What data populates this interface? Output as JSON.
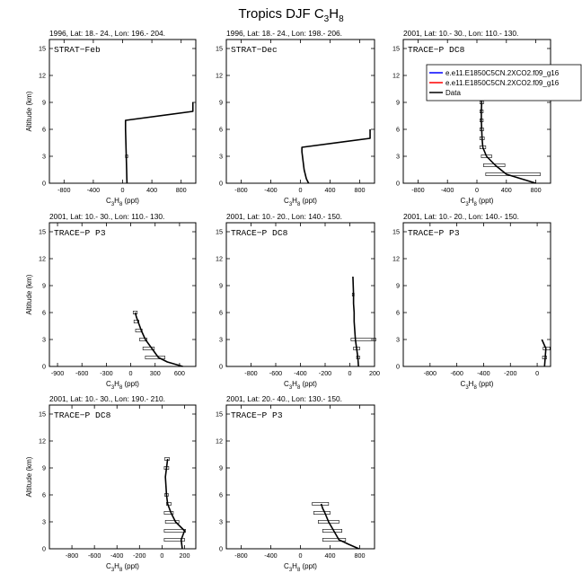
{
  "page": {
    "title_main": "Tropics DJF C",
    "title_sub1": "3",
    "title_mid": "H",
    "title_sub2": "8"
  },
  "chart_data": [
    {
      "type": "line",
      "subtitle": "1996, Lat: 18.- 24., Lon: 196.- 204.",
      "campaign": "STRAT−Feb",
      "xlabel": "C3H8 (ppt)",
      "ylabel": "Altitude (km)",
      "xlim": [
        -1000,
        1000
      ],
      "ylim": [
        0,
        16
      ],
      "xticks": [
        -800,
        -400,
        0,
        400,
        800
      ],
      "yticks": [
        0,
        3,
        6,
        9,
        12,
        15
      ],
      "series": [
        {
          "color": "#000000",
          "x": [
            60,
            58,
            55,
            50,
            45,
            40,
            40,
            960,
            960
          ],
          "y": [
            0,
            0.5,
            1.5,
            3,
            4.5,
            6,
            7,
            8,
            9
          ]
        }
      ],
      "errorbars": [
        {
          "y": 3,
          "xmin": 40,
          "xmax": 70
        }
      ]
    },
    {
      "type": "line",
      "subtitle": "1996, Lat: 18.- 24., Lon: 198.- 206.",
      "campaign": "STRAT−Dec",
      "xlabel": "C3H8 (ppt)",
      "ylabel": "",
      "xlim": [
        -1000,
        1000
      ],
      "ylim": [
        0,
        16
      ],
      "xticks": [
        -800,
        -400,
        0,
        400,
        800
      ],
      "yticks": [
        0,
        3,
        6,
        9,
        12,
        15
      ],
      "series": [
        {
          "color": "#000000",
          "x": [
            110,
            80,
            50,
            35,
            20,
            20,
            940,
            940
          ],
          "y": [
            0,
            0.5,
            1.5,
            2.5,
            3.5,
            4,
            5,
            6
          ]
        }
      ],
      "errorbars": []
    },
    {
      "type": "line",
      "subtitle": "2001, Lat: 10.- 30., Lon: 110.- 130.",
      "campaign": "TRACE−P DC8",
      "xlabel": "C3H8 (ppt)",
      "ylabel": "",
      "xlim": [
        -1000,
        1000
      ],
      "ylim": [
        0,
        16
      ],
      "xticks": [
        -800,
        -400,
        0,
        400,
        800
      ],
      "yticks": [
        0,
        3,
        6,
        9,
        12,
        15
      ],
      "legend": [
        "e.e11.E1850C5CN.2XCO2.f09_g16",
        "e.e11.E1850C5CN.2XCO2.f09_g16",
        "Data"
      ],
      "legend_colors": [
        "#0000ff",
        "#ff0000",
        "#000000"
      ],
      "series": [
        {
          "color": "#000000",
          "x": [
            800,
            600,
            400,
            250,
            130,
            80,
            70,
            65,
            60,
            60,
            65,
            60,
            65
          ],
          "y": [
            0,
            0.5,
            1,
            2,
            3,
            4,
            5,
            6,
            7,
            8,
            9,
            9.5,
            10
          ]
        }
      ],
      "errorbars": [
        {
          "y": 1,
          "xmin": 120,
          "xmax": 860
        },
        {
          "y": 2,
          "xmin": 90,
          "xmax": 380
        },
        {
          "y": 3,
          "xmin": 60,
          "xmax": 200
        },
        {
          "y": 4,
          "xmin": 40,
          "xmax": 120
        },
        {
          "y": 5,
          "xmin": 40,
          "xmax": 100
        },
        {
          "y": 6,
          "xmin": 40,
          "xmax": 90
        },
        {
          "y": 7,
          "xmin": 40,
          "xmax": 85
        },
        {
          "y": 8,
          "xmin": 40,
          "xmax": 85
        },
        {
          "y": 9,
          "xmin": 40,
          "xmax": 90
        },
        {
          "y": 10,
          "xmin": 40,
          "xmax": 90
        }
      ]
    },
    {
      "type": "line",
      "subtitle": "2001, Lat: 10.- 30., Lon: 110.- 130.",
      "campaign": "TRACE−P P3",
      "xlabel": "C3H8 (ppt)",
      "ylabel": "Altitude (km)",
      "xlim": [
        -1000,
        800
      ],
      "ylim": [
        0,
        16
      ],
      "xticks": [
        -900,
        -600,
        -300,
        0,
        300,
        600
      ],
      "yticks": [
        0,
        3,
        6,
        9,
        12,
        15
      ],
      "series": [
        {
          "color": "#000000",
          "x": [
            640,
            450,
            340,
            260,
            180,
            130,
            90,
            70,
            55
          ],
          "y": [
            0,
            0.5,
            1,
            2,
            3,
            4,
            5,
            5.5,
            6
          ]
        }
      ],
      "errorbars": [
        {
          "y": 1,
          "xmin": 180,
          "xmax": 420
        },
        {
          "y": 2,
          "xmin": 150,
          "xmax": 290
        },
        {
          "y": 3,
          "xmin": 110,
          "xmax": 200
        },
        {
          "y": 4,
          "xmin": 60,
          "xmax": 140
        },
        {
          "y": 5,
          "xmin": 40,
          "xmax": 100
        },
        {
          "y": 6,
          "xmin": 30,
          "xmax": 80
        }
      ]
    },
    {
      "type": "line",
      "subtitle": "2001, Lat: 10.- 20., Lon: 140.- 150.",
      "campaign": "TRACE−P DC8",
      "xlabel": "C3H8 (ppt)",
      "ylabel": "",
      "xlim": [
        -1000,
        200
      ],
      "ylim": [
        0,
        16
      ],
      "xticks": [
        -800,
        -600,
        -400,
        -200,
        0,
        200
      ],
      "yticks": [
        0,
        3,
        6,
        9,
        12,
        15
      ],
      "series": [
        {
          "color": "#000000",
          "x": [
            70,
            65,
            55,
            45,
            40,
            35,
            35,
            30,
            30,
            25
          ],
          "y": [
            0,
            1,
            2,
            3,
            4,
            5,
            6,
            7,
            8,
            10
          ]
        }
      ],
      "errorbars": [
        {
          "y": 1,
          "xmin": 55,
          "xmax": 80
        },
        {
          "y": 2,
          "xmin": 30,
          "xmax": 80
        },
        {
          "y": 3,
          "xmin": 10,
          "xmax": 210
        },
        {
          "y": 8,
          "xmin": 20,
          "xmax": 35
        }
      ]
    },
    {
      "type": "line",
      "subtitle": "2001, Lat: 10.- 20., Lon: 140.- 150.",
      "campaign": "TRACE−P P3",
      "xlabel": "C3H8 (ppt)",
      "ylabel": "",
      "xlim": [
        -1000,
        100
      ],
      "ylim": [
        0,
        16
      ],
      "xticks": [
        -800,
        -600,
        -400,
        -200,
        0
      ],
      "yticks": [
        0,
        3,
        6,
        9,
        12,
        15
      ],
      "series": [
        {
          "color": "#000000",
          "x": [
            55,
            60,
            65,
            50,
            35
          ],
          "y": [
            0,
            1,
            2,
            2.5,
            3
          ]
        }
      ],
      "errorbars": [
        {
          "y": 1,
          "xmin": 40,
          "xmax": 70
        },
        {
          "y": 2,
          "xmin": 45,
          "xmax": 95
        }
      ]
    },
    {
      "type": "line",
      "subtitle": "2001, Lat: 10.- 30., Lon: 190.- 210.",
      "campaign": "TRACE−P DC8",
      "xlabel": "C3H8 (ppt)",
      "ylabel": "Altitude (km)",
      "xlim": [
        -1000,
        300
      ],
      "ylim": [
        0,
        16
      ],
      "xticks": [
        -800,
        -600,
        -400,
        -200,
        0,
        200
      ],
      "yticks": [
        0,
        3,
        6,
        9,
        12,
        15
      ],
      "series": [
        {
          "color": "#000000",
          "x": [
            180,
            170,
            200,
            120,
            80,
            50,
            40,
            35,
            30,
            40,
            45,
            50
          ],
          "y": [
            0,
            1,
            2,
            3,
            4,
            5,
            6,
            7,
            8,
            9,
            9.5,
            10
          ]
        }
      ],
      "errorbars": [
        {
          "y": 1,
          "xmin": 20,
          "xmax": 200
        },
        {
          "y": 2,
          "xmin": 20,
          "xmax": 210
        },
        {
          "y": 3,
          "xmin": 30,
          "xmax": 150
        },
        {
          "y": 4,
          "xmin": 20,
          "xmax": 100
        },
        {
          "y": 5,
          "xmin": 40,
          "xmax": 80
        },
        {
          "y": 6,
          "xmin": 25,
          "xmax": 55
        },
        {
          "y": 9,
          "xmin": 20,
          "xmax": 60
        },
        {
          "y": 10,
          "xmin": 25,
          "xmax": 65
        }
      ]
    },
    {
      "type": "line",
      "subtitle": "2001, Lat: 20.- 40., Lon: 130.- 150.",
      "campaign": "TRACE−P P3",
      "xlabel": "C3H8 (ppt)",
      "ylabel": "",
      "xlim": [
        -1000,
        1000
      ],
      "ylim": [
        0,
        16
      ],
      "xticks": [
        -800,
        -400,
        0,
        400,
        800
      ],
      "yticks": [
        0,
        3,
        6,
        9,
        12,
        15
      ],
      "series": [
        {
          "color": "#000000",
          "x": [
            790,
            650,
            520,
            450,
            380,
            330,
            300,
            280
          ],
          "y": [
            0,
            0.5,
            1,
            2,
            3,
            4,
            4.5,
            5
          ]
        }
      ],
      "errorbars": [
        {
          "y": 1,
          "xmin": 300,
          "xmax": 610
        },
        {
          "y": 2,
          "xmin": 300,
          "xmax": 560
        },
        {
          "y": 3,
          "xmin": 240,
          "xmax": 520
        },
        {
          "y": 4,
          "xmin": 180,
          "xmax": 400
        },
        {
          "y": 5,
          "xmin": 160,
          "xmax": 380
        }
      ]
    }
  ]
}
